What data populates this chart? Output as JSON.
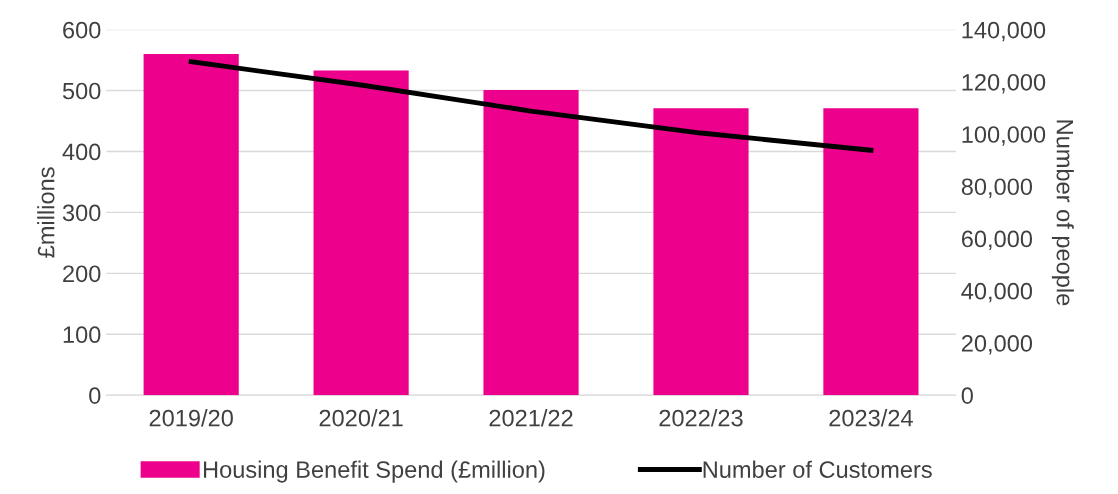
{
  "chart_data": {
    "type": "bar",
    "categories": [
      "2019/20",
      "2020/21",
      "2021/22",
      "2022/23",
      "2023/24"
    ],
    "series": [
      {
        "name": "Housing Benefit Spend (£million)",
        "color": "#ec008c",
        "values": [
          560,
          533,
          501,
          471,
          471
        ]
      },
      {
        "name": "Number of Customers",
        "color": "#000000",
        "type": "line",
        "axis": "y2",
        "values": [
          127700,
          118800,
          108800,
          100400,
          93800
        ]
      }
    ],
    "ylabel": "£millions",
    "y2label": "Number of people",
    "ylim": [
      0,
      600
    ],
    "yticks": [
      0,
      100,
      200,
      300,
      400,
      500,
      600
    ],
    "y2lim": [
      0,
      140000
    ],
    "y2ticks": [
      {
        "value": 0,
        "label": "0"
      },
      {
        "value": 20000,
        "label": "20,000"
      },
      {
        "value": 40000,
        "label": "40,000"
      },
      {
        "value": 60000,
        "label": "60,000"
      },
      {
        "value": 80000,
        "label": "80,000"
      },
      {
        "value": 100000,
        "label": "100,000"
      },
      {
        "value": 120000,
        "label": "120,000"
      },
      {
        "value": 140000,
        "label": "140,000"
      }
    ],
    "grid": "y",
    "legend": "bottom"
  }
}
